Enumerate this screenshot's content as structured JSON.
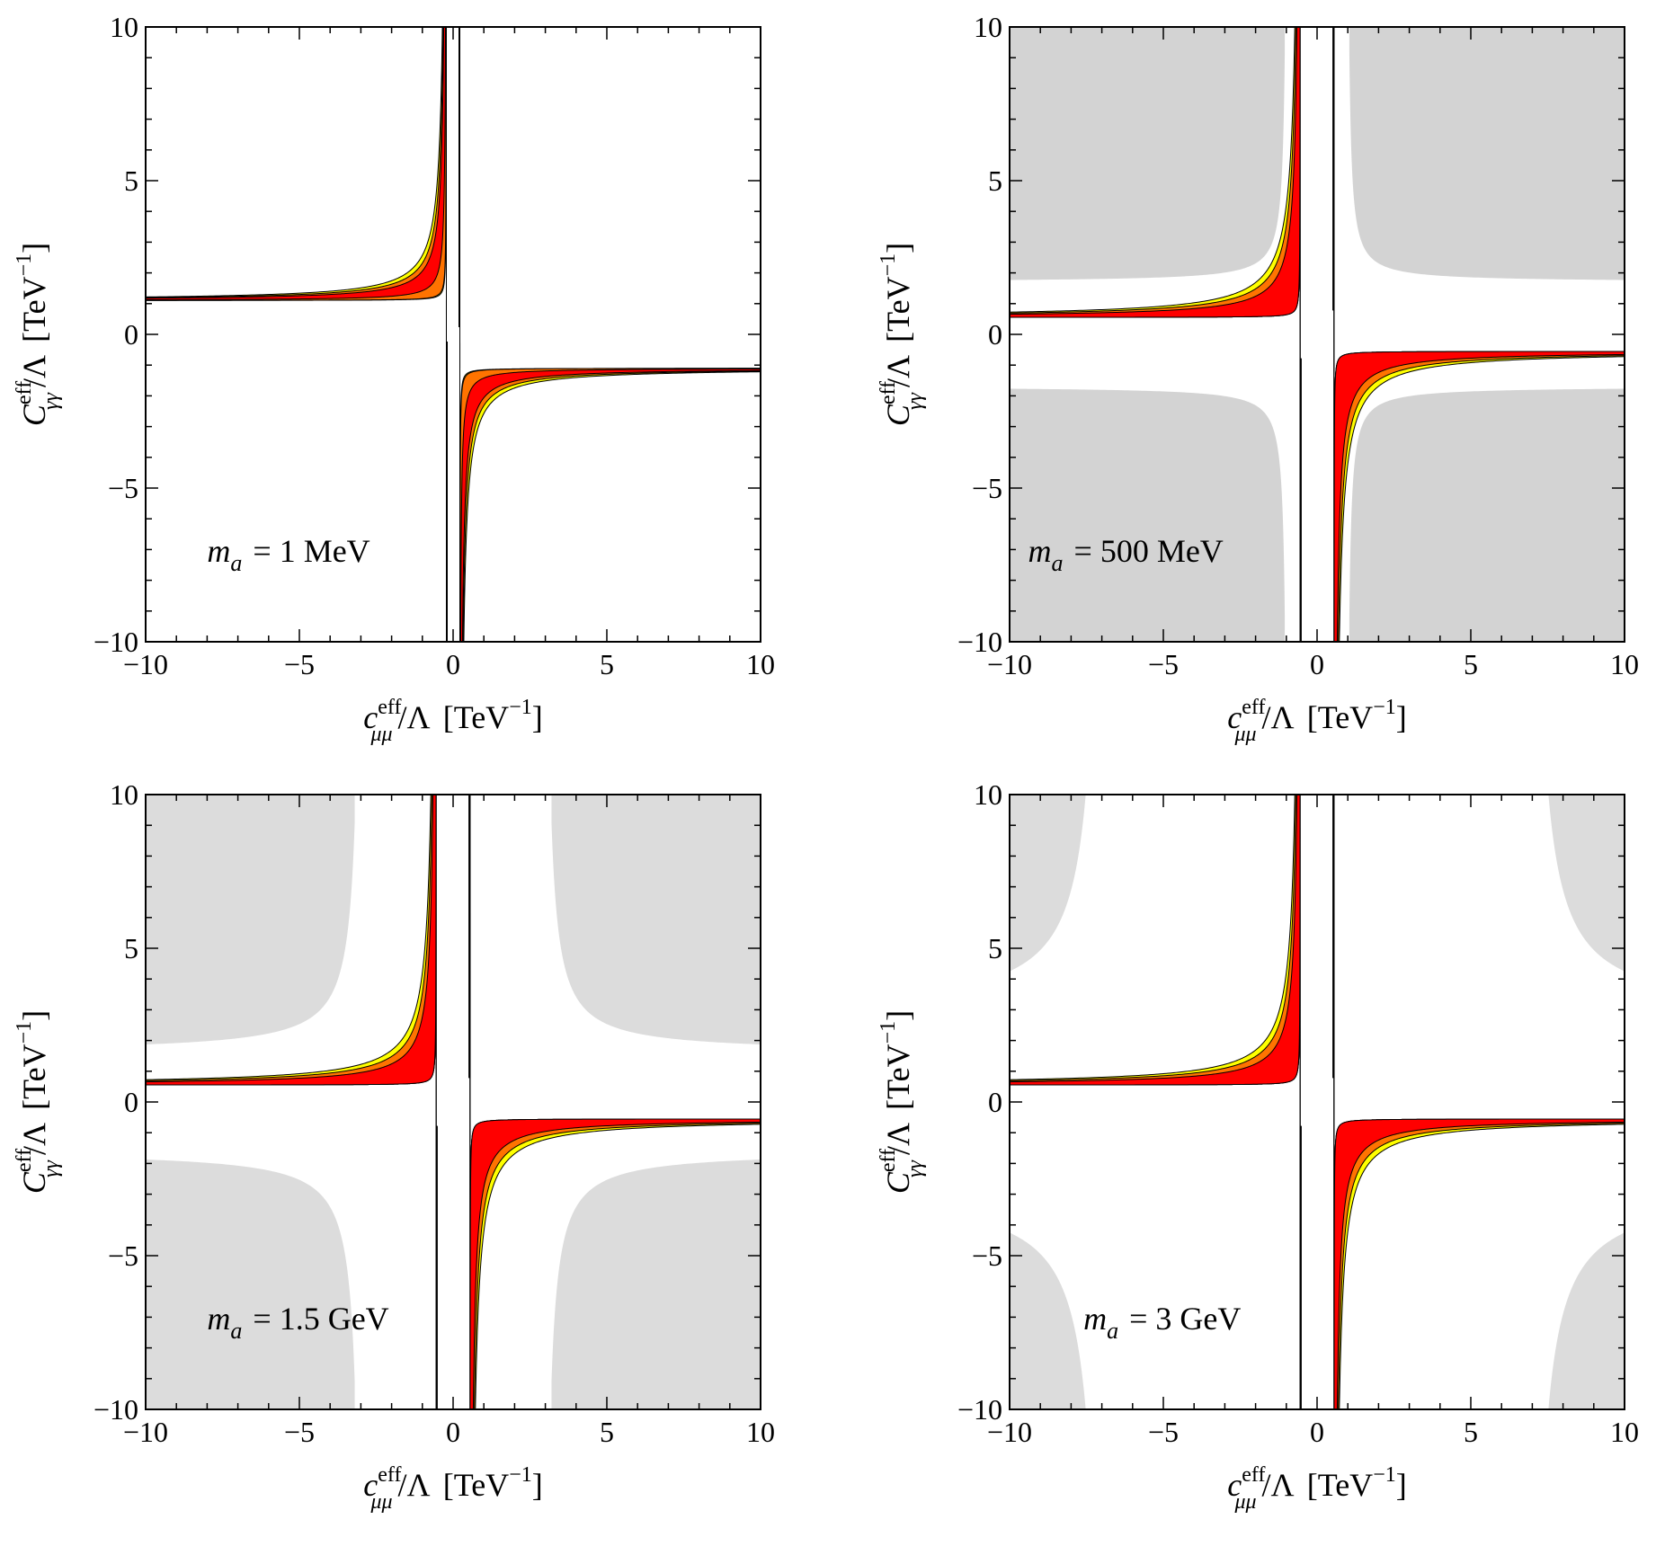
{
  "colors": {
    "band_68": "#ff0000",
    "band_95": "#ff7300",
    "band_99": "#ffff00",
    "band_outline": "#000000",
    "excluded_dark": "#c8c8c8",
    "excluded_light": "#dcdcdc"
  },
  "axis_text": {
    "x_symbol": "c",
    "x_sup": "eff",
    "x_sub": "μμ",
    "y_symbol": "C",
    "y_sup": "eff",
    "y_sub": "γγ",
    "lambda": "/Λ",
    "unit_open": "[TeV",
    "unit_exp": "−1",
    "unit_close": "]"
  },
  "chart_data": [
    {
      "type": "area",
      "annotation": {
        "symbol": "m",
        "sub": "a",
        "value": "= 1 MeV"
      },
      "xlim": [
        -10,
        10
      ],
      "ylim": [
        -10,
        10
      ],
      "xticks": [
        -10,
        -5,
        0,
        5,
        10
      ],
      "yticks": [
        -10,
        -5,
        0,
        5,
        10
      ],
      "tick_labels": [
        "−10",
        "−5",
        "0",
        "5",
        "10"
      ],
      "bands": {
        "a": 1.1,
        "p": 0.22,
        "w68": 0.25,
        "w95": 0.45,
        "w99": 0.65
      },
      "excluded": null
    },
    {
      "type": "area",
      "annotation": {
        "symbol": "m",
        "sub": "a",
        "value": "= 500 MeV"
      },
      "xlim": [
        -10,
        10
      ],
      "ylim": [
        -10,
        10
      ],
      "xticks": [
        -10,
        -5,
        0,
        5,
        10
      ],
      "yticks": [
        -10,
        -5,
        0,
        5,
        10
      ],
      "tick_labels": [
        "−10",
        "−5",
        "0",
        "5",
        "10"
      ],
      "bands": {
        "a": 0.55,
        "p": 0.55,
        "w68": 0.5,
        "w95": 0.85,
        "w99": 1.15
      },
      "excluded": {
        "color": "dark",
        "a": 1.7,
        "p": 1.05,
        "opacity": 0.8
      }
    },
    {
      "type": "area",
      "annotation": {
        "symbol": "m",
        "sub": "a",
        "value": "= 1.5 GeV"
      },
      "xlim": [
        -10,
        10
      ],
      "ylim": [
        -10,
        10
      ],
      "xticks": [
        -10,
        -5,
        0,
        5,
        10
      ],
      "yticks": [
        -10,
        -5,
        0,
        5,
        10
      ],
      "tick_labels": [
        "−10",
        "−5",
        "0",
        "5",
        "10"
      ],
      "bands": {
        "a": 0.55,
        "p": 0.55,
        "w68": 0.5,
        "w95": 0.85,
        "w99": 1.15
      },
      "excluded": {
        "color": "light",
        "a": 1.6,
        "p": 3.2,
        "opacity": 1
      }
    },
    {
      "type": "area",
      "annotation": {
        "symbol": "m",
        "sub": "a",
        "value": "= 3 GeV"
      },
      "xlim": [
        -10,
        10
      ],
      "ylim": [
        -10,
        10
      ],
      "xticks": [
        -10,
        -5,
        0,
        5,
        10
      ],
      "yticks": [
        -10,
        -5,
        0,
        5,
        10
      ],
      "tick_labels": [
        "−10",
        "−5",
        "0",
        "5",
        "10"
      ],
      "bands": {
        "a": 0.55,
        "p": 0.55,
        "w68": 0.5,
        "w95": 0.85,
        "w99": 1.15
      },
      "excluded": {
        "color": "light",
        "a": 2.8,
        "p": 7.5,
        "opacity": 1
      }
    }
  ]
}
